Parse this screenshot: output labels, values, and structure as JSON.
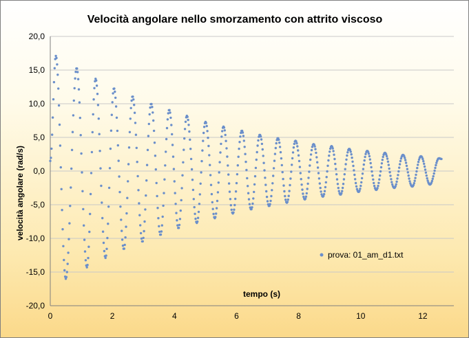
{
  "chart_data": {
    "type": "scatter",
    "title": "Velocità  angolare  nello  smorzamento  con  attrito  viscoso",
    "xlabel": "tempo (s)",
    "ylabel": "velocità angolare (rad/s)",
    "xlim": [
      0,
      13.0
    ],
    "ylim": [
      -20,
      20
    ],
    "x_ticks": [
      "0",
      "2",
      "4",
      "6",
      "8",
      "10",
      "12"
    ],
    "y_ticks": [
      "20,0",
      "15,0",
      "10,0",
      "5,0",
      "0,0",
      "-5,0",
      "-10,0",
      "-15,0",
      "-20,0"
    ],
    "grid": "horizontal",
    "legend_position": "right",
    "point_color": "#6b8fca",
    "series": [
      {
        "name": "prova: 01_am_d1.txt",
        "t_end": 12.6,
        "dt": 0.02,
        "peaks": [
          [
            0.18,
            17.1
          ],
          [
            0.5,
            -16.0
          ],
          [
            0.85,
            15.3
          ],
          [
            1.18,
            -14.3
          ],
          [
            1.46,
            13.7
          ],
          [
            1.78,
            -12.9
          ],
          [
            2.05,
            12.3
          ],
          [
            2.37,
            -11.6
          ],
          [
            2.65,
            11.1
          ],
          [
            2.97,
            -10.5
          ],
          [
            3.25,
            10.0
          ],
          [
            3.55,
            -9.5
          ],
          [
            3.83,
            9.1
          ],
          [
            4.13,
            -8.5
          ],
          [
            4.4,
            8.2
          ],
          [
            4.72,
            -7.7
          ],
          [
            5.0,
            7.3
          ],
          [
            5.3,
            -7.0
          ],
          [
            5.58,
            6.6
          ],
          [
            5.88,
            -6.3
          ],
          [
            6.17,
            6.0
          ],
          [
            6.47,
            -5.7
          ],
          [
            6.75,
            5.4
          ],
          [
            7.05,
            -5.2
          ],
          [
            7.33,
            4.9
          ],
          [
            7.62,
            -4.7
          ],
          [
            7.9,
            4.5
          ],
          [
            8.2,
            -4.2
          ],
          [
            8.48,
            4.0
          ],
          [
            8.78,
            -3.8
          ],
          [
            9.06,
            3.7
          ],
          [
            9.35,
            -3.5
          ],
          [
            9.63,
            3.3
          ],
          [
            9.93,
            -3.1
          ],
          [
            10.21,
            3.0
          ],
          [
            10.5,
            -2.8
          ],
          [
            10.78,
            2.7
          ],
          [
            11.08,
            -2.5
          ],
          [
            11.36,
            2.4
          ],
          [
            11.66,
            -2.3
          ],
          [
            11.94,
            2.2
          ],
          [
            12.23,
            -2.0
          ],
          [
            12.52,
            1.9
          ]
        ],
        "start_value": 1.5,
        "end_value": 1.8
      }
    ]
  }
}
